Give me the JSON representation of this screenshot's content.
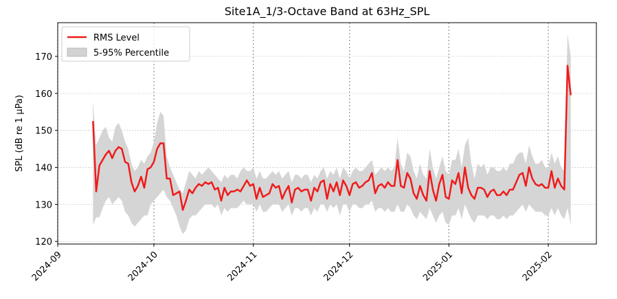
{
  "chart_data": {
    "type": "line",
    "title": "Site1A_1/3-Octave Band at 63Hz_SPL",
    "ylabel": "SPL (dB re 1 μPa)",
    "x": [
      "2024-09-12",
      "2024-09-13",
      "2024-09-14",
      "2024-09-15",
      "2024-09-16",
      "2024-09-17",
      "2024-09-18",
      "2024-09-19",
      "2024-09-20",
      "2024-09-21",
      "2024-09-22",
      "2024-09-23",
      "2024-09-24",
      "2024-09-25",
      "2024-09-26",
      "2024-09-27",
      "2024-09-28",
      "2024-09-29",
      "2024-09-30",
      "2024-10-01",
      "2024-10-02",
      "2024-10-03",
      "2024-10-04",
      "2024-10-05",
      "2024-10-06",
      "2024-10-07",
      "2024-10-08",
      "2024-10-09",
      "2024-10-10",
      "2024-10-11",
      "2024-10-12",
      "2024-10-13",
      "2024-10-14",
      "2024-10-15",
      "2024-10-16",
      "2024-10-17",
      "2024-10-18",
      "2024-10-19",
      "2024-10-20",
      "2024-10-21",
      "2024-10-22",
      "2024-10-23",
      "2024-10-24",
      "2024-10-25",
      "2024-10-26",
      "2024-10-27",
      "2024-10-28",
      "2024-10-29",
      "2024-10-30",
      "2024-10-31",
      "2024-11-01",
      "2024-11-02",
      "2024-11-03",
      "2024-11-04",
      "2024-11-05",
      "2024-11-06",
      "2024-11-07",
      "2024-11-08",
      "2024-11-09",
      "2024-11-10",
      "2024-11-11",
      "2024-11-12",
      "2024-11-13",
      "2024-11-14",
      "2024-11-15",
      "2024-11-16",
      "2024-11-17",
      "2024-11-18",
      "2024-11-19",
      "2024-11-20",
      "2024-11-21",
      "2024-11-22",
      "2024-11-23",
      "2024-11-24",
      "2024-11-25",
      "2024-11-26",
      "2024-11-27",
      "2024-11-28",
      "2024-11-29",
      "2024-11-30",
      "2024-12-01",
      "2024-12-02",
      "2024-12-03",
      "2024-12-04",
      "2024-12-05",
      "2024-12-06",
      "2024-12-07",
      "2024-12-08",
      "2024-12-09",
      "2024-12-10",
      "2024-12-11",
      "2024-12-12",
      "2024-12-13",
      "2024-12-14",
      "2024-12-15",
      "2024-12-16",
      "2024-12-17",
      "2024-12-18",
      "2024-12-19",
      "2024-12-20",
      "2024-12-21",
      "2024-12-22",
      "2024-12-23",
      "2024-12-24",
      "2024-12-25",
      "2024-12-26",
      "2024-12-27",
      "2024-12-28",
      "2024-12-29",
      "2024-12-30",
      "2024-12-31",
      "2025-01-01",
      "2025-01-02",
      "2025-01-03",
      "2025-01-04",
      "2025-01-05",
      "2025-01-06",
      "2025-01-07",
      "2025-01-08",
      "2025-01-09",
      "2025-01-10",
      "2025-01-11",
      "2025-01-12",
      "2025-01-13",
      "2025-01-14",
      "2025-01-15",
      "2025-01-16",
      "2025-01-17",
      "2025-01-18",
      "2025-01-19",
      "2025-01-20",
      "2025-01-21",
      "2025-01-22",
      "2025-01-23",
      "2025-01-24",
      "2025-01-25",
      "2025-01-26",
      "2025-01-27",
      "2025-01-28",
      "2025-01-29",
      "2025-01-30",
      "2025-01-31",
      "2025-02-01",
      "2025-02-02",
      "2025-02-03",
      "2025-02-04",
      "2025-02-05",
      "2025-02-06",
      "2025-02-07",
      "2025-02-08"
    ],
    "series": [
      {
        "name": "RMS Level",
        "color": "#f01a1a",
        "values": [
          152.5,
          133.5,
          140.5,
          142,
          143.5,
          144.5,
          142.5,
          144.5,
          145.5,
          145,
          141.5,
          141,
          136,
          133.5,
          135,
          137.5,
          134.5,
          139.5,
          140,
          141.5,
          145,
          146.5,
          146.5,
          137,
          137,
          132.5,
          133,
          133.5,
          128.5,
          131,
          134,
          133,
          134.5,
          135.5,
          135,
          136,
          135.5,
          136,
          134,
          134.5,
          131,
          134.5,
          132.5,
          133.5,
          133.5,
          134,
          133.5,
          135,
          136.5,
          135,
          135.5,
          131.5,
          134.5,
          132,
          132.5,
          133,
          135.5,
          134.5,
          135,
          131.5,
          133.5,
          135,
          130.5,
          134,
          134.5,
          133.5,
          134,
          134,
          131,
          134.5,
          133.5,
          136,
          136.5,
          131.5,
          135.5,
          133.5,
          136,
          132.5,
          136.5,
          135,
          132.5,
          135.5,
          136,
          134.5,
          135,
          136,
          136.5,
          138.5,
          133,
          135,
          135.5,
          134.5,
          136,
          135,
          135,
          142,
          135,
          134.5,
          138.5,
          137,
          133,
          131.5,
          135,
          132.5,
          131,
          139,
          134,
          131,
          135.5,
          138,
          132,
          131.5,
          136.5,
          135.5,
          138.5,
          133,
          140,
          134.5,
          132.5,
          131.5,
          134.5,
          134.5,
          134,
          132,
          133.5,
          134,
          132.5,
          132.5,
          133.5,
          132.5,
          134,
          134,
          136,
          138,
          138.5,
          135,
          140,
          137,
          135.5,
          135,
          135.5,
          134.5,
          134.5,
          139,
          134.5,
          137,
          135,
          134,
          167.5,
          159.5
        ]
      },
      {
        "name": "5-95% Percentile",
        "color": "#d3d3d3",
        "upper": [
          158,
          146,
          148,
          150,
          151,
          148,
          147,
          151,
          152,
          150,
          147,
          145,
          141,
          139,
          140,
          142,
          141,
          143,
          144,
          147,
          152,
          155,
          154,
          143,
          140,
          138,
          136,
          134,
          133,
          136,
          139,
          138,
          137,
          139,
          138,
          139,
          140,
          139,
          138,
          137,
          136,
          138,
          137,
          138,
          138,
          137,
          139,
          140,
          139,
          139,
          140,
          137,
          139,
          137,
          137,
          138,
          139,
          138,
          139,
          137,
          138,
          139,
          136,
          138,
          138,
          137,
          138,
          138,
          136,
          138,
          137,
          139,
          140,
          137,
          139,
          138,
          140,
          137,
          140,
          139,
          137,
          139,
          140,
          139,
          139,
          140,
          141,
          142,
          138,
          139,
          140,
          139,
          140,
          139,
          140,
          148,
          141,
          139,
          144,
          143,
          139,
          137,
          141,
          138,
          137,
          145,
          140,
          137,
          140,
          143,
          139,
          138,
          142,
          142,
          145,
          140,
          146,
          148,
          141,
          137,
          141,
          140,
          141,
          138,
          140,
          140,
          139,
          139,
          140,
          139,
          141,
          141,
          143,
          144,
          144,
          141,
          146,
          143,
          141,
          141,
          142,
          140,
          140,
          144,
          141,
          143,
          140,
          139,
          176,
          170
        ],
        "lower": [
          124.5,
          126.5,
          126.5,
          129,
          131,
          132,
          130,
          131,
          132,
          131,
          128,
          127,
          125,
          124,
          125,
          126,
          127,
          127,
          130,
          131,
          132,
          133,
          134,
          132,
          131,
          129,
          127,
          124,
          122,
          123,
          126,
          127,
          127,
          128,
          129,
          130,
          130,
          130,
          129,
          130,
          127,
          129,
          128,
          129,
          129,
          129,
          130,
          131,
          130,
          130,
          130,
          128,
          130,
          128,
          128,
          129,
          130,
          130,
          130,
          128,
          129,
          130,
          127,
          129,
          129,
          128,
          129,
          129,
          127,
          129,
          128,
          130,
          130,
          128,
          130,
          129,
          130,
          127,
          130,
          130,
          128,
          130,
          130,
          129,
          129,
          130,
          130,
          131,
          128,
          129,
          129,
          128,
          129,
          128,
          128,
          130,
          128,
          128,
          130,
          129,
          127,
          126,
          128,
          127,
          126,
          129,
          127,
          125,
          127,
          128,
          125,
          124.5,
          127,
          127,
          129,
          126,
          130,
          128,
          126,
          125,
          127,
          127,
          127,
          126,
          127,
          127,
          126,
          126,
          127,
          126,
          127,
          127,
          128,
          129,
          130,
          128,
          130,
          129,
          128,
          128,
          128,
          127,
          127,
          129,
          127,
          129,
          127,
          126,
          129,
          124.5
        ]
      }
    ],
    "xlim": [
      "2024-09-01",
      "2025-02-16"
    ],
    "xticks": [
      "2024-09",
      "2024-10",
      "2024-11",
      "2024-12",
      "2025-01",
      "2025-02"
    ],
    "ylim": [
      119.3,
      179.1
    ],
    "yticks": [
      120,
      130,
      140,
      150,
      160,
      170
    ],
    "grid": true,
    "legend": "upper left"
  }
}
